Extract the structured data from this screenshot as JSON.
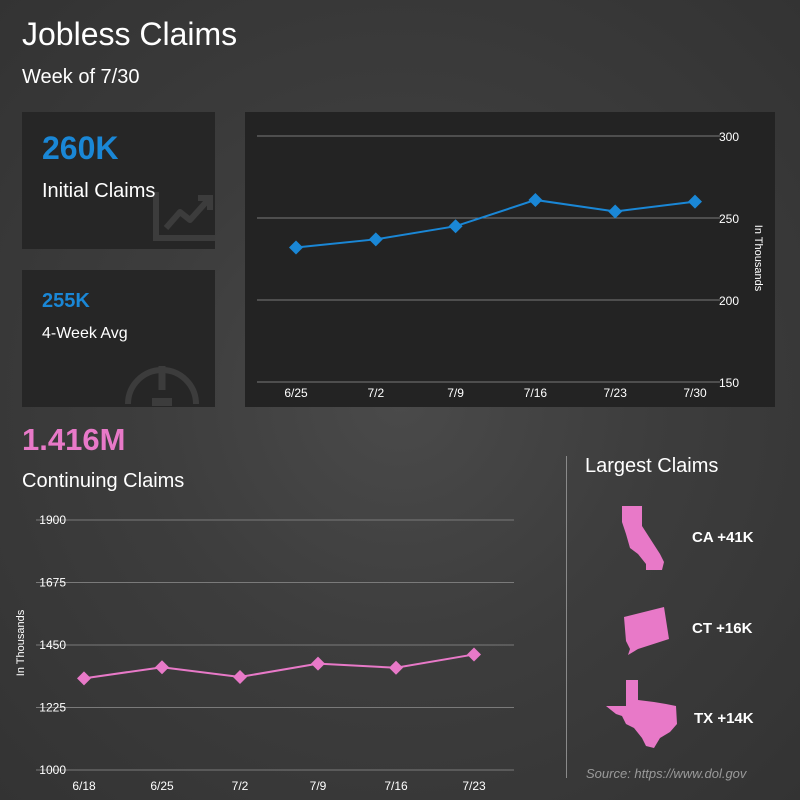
{
  "header": {
    "title": "Jobless Claims",
    "subtitle": "Week of 7/30"
  },
  "initial_card": {
    "value": "260K",
    "label": "Initial Claims",
    "icon": "chart-trend-icon"
  },
  "avg_card": {
    "value": "255K",
    "label": "4-Week Avg",
    "icon": "gauge-icon"
  },
  "continuing": {
    "value": "1.416M",
    "label": "Continuing Claims"
  },
  "largest": {
    "title": "Largest Claims",
    "states": [
      {
        "label": "CA +41K",
        "icon": "california-icon"
      },
      {
        "label": "CT +16K",
        "icon": "connecticut-icon"
      },
      {
        "label": "TX +14K",
        "icon": "texas-icon"
      }
    ]
  },
  "source": "Source: https://www.dol.gov",
  "colors": {
    "blue": "#1a87d6",
    "pink": "#e879c8"
  },
  "chart_data": [
    {
      "type": "line",
      "title": "",
      "x": [
        "6/25",
        "7/2",
        "7/9",
        "7/16",
        "7/23",
        "7/30"
      ],
      "series": [
        {
          "values": [
            232,
            237,
            245,
            261,
            254,
            260
          ]
        }
      ],
      "ylabel": "In Thousands",
      "ylim": [
        150,
        300
      ],
      "yticks": [
        150,
        200,
        250,
        300
      ],
      "ytick_labels": [
        "150",
        "200",
        "250",
        "300"
      ],
      "grid": true,
      "axis_position": "right",
      "color": "#1a87d6"
    },
    {
      "type": "line",
      "title": "",
      "x": [
        "6/18",
        "6/25",
        "7/2",
        "7/9",
        "7/16",
        "7/23"
      ],
      "series": [
        {
          "values": [
            1330,
            1370,
            1335,
            1383,
            1368,
            1416
          ]
        }
      ],
      "ylabel": "In Thousands",
      "ylim": [
        1000,
        1900
      ],
      "yticks": [
        1000,
        1225,
        1450,
        1675,
        1900
      ],
      "ytick_labels": [
        "1000",
        "1225",
        "1450",
        "1675",
        "1900"
      ],
      "grid": true,
      "axis_position": "left",
      "color": "#e879c8"
    }
  ]
}
